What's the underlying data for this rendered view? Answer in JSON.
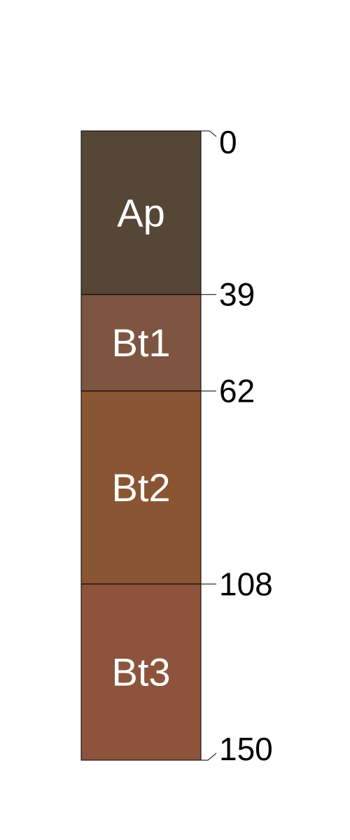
{
  "profile": {
    "horizons": [
      {
        "name": "Ap",
        "top": 0,
        "bottom": 39,
        "color": "#554636"
      },
      {
        "name": "Bt1",
        "top": 39,
        "bottom": 62,
        "color": "#7E5540"
      },
      {
        "name": "Bt2",
        "top": 62,
        "bottom": 108,
        "color": "#8A5533"
      },
      {
        "name": "Bt3",
        "top": 108,
        "bottom": 150,
        "color": "#8D533D"
      }
    ],
    "depth_labels": [
      "0",
      "39",
      "62",
      "108",
      "150"
    ]
  }
}
